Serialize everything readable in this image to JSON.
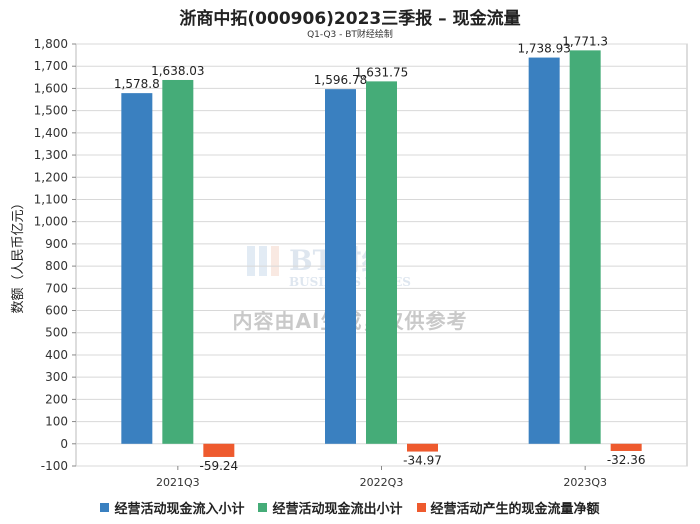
{
  "title": "浙商中拓(000906)2023三季报 – 现金流量",
  "subtitle": "Q1-Q3 - BT财经绘制",
  "watermark": {
    "logo_text": "BT财经",
    "logo_subtext": "BUSINESS TIMES",
    "notice": "内容由AI生成，仅供参考"
  },
  "chart_data": {
    "type": "bar",
    "categories": [
      "2021Q3",
      "2022Q3",
      "2023Q3"
    ],
    "series": [
      {
        "name": "经营活动现金流入小计",
        "color": "#3a80c0",
        "values": [
          1578.8,
          1596.78,
          1738.93
        ],
        "labels": [
          "1,578.8",
          "1,596.78",
          "1,738.93"
        ]
      },
      {
        "name": "经营活动现金流出小计",
        "color": "#45ac78",
        "values": [
          1638.03,
          1631.75,
          1771.3
        ],
        "labels": [
          "1,638.03",
          "1,631.75",
          "1,771.3"
        ]
      },
      {
        "name": "经营活动产生的现金流量净额",
        "color": "#ee5a2e",
        "values": [
          -59.24,
          -34.97,
          -32.36
        ],
        "labels": [
          "-59.24",
          "-34.97",
          "-32.36"
        ]
      }
    ],
    "xlabel": "",
    "ylabel": "数额（人民币亿元）",
    "ylim": [
      -100,
      1800
    ],
    "yticks": [
      -100,
      0,
      100,
      200,
      300,
      400,
      500,
      600,
      700,
      800,
      900,
      1000,
      1100,
      1200,
      1300,
      1400,
      1500,
      1600,
      1700,
      1800
    ],
    "ytick_labels": [
      "-100",
      "0",
      "100",
      "200",
      "300",
      "400",
      "500",
      "600",
      "700",
      "800",
      "900",
      "1,000",
      "1,100",
      "1,200",
      "1,300",
      "1,400",
      "1,500",
      "1,600",
      "1,700",
      "1,800"
    ],
    "grid": true,
    "legend_position": "bottom"
  }
}
